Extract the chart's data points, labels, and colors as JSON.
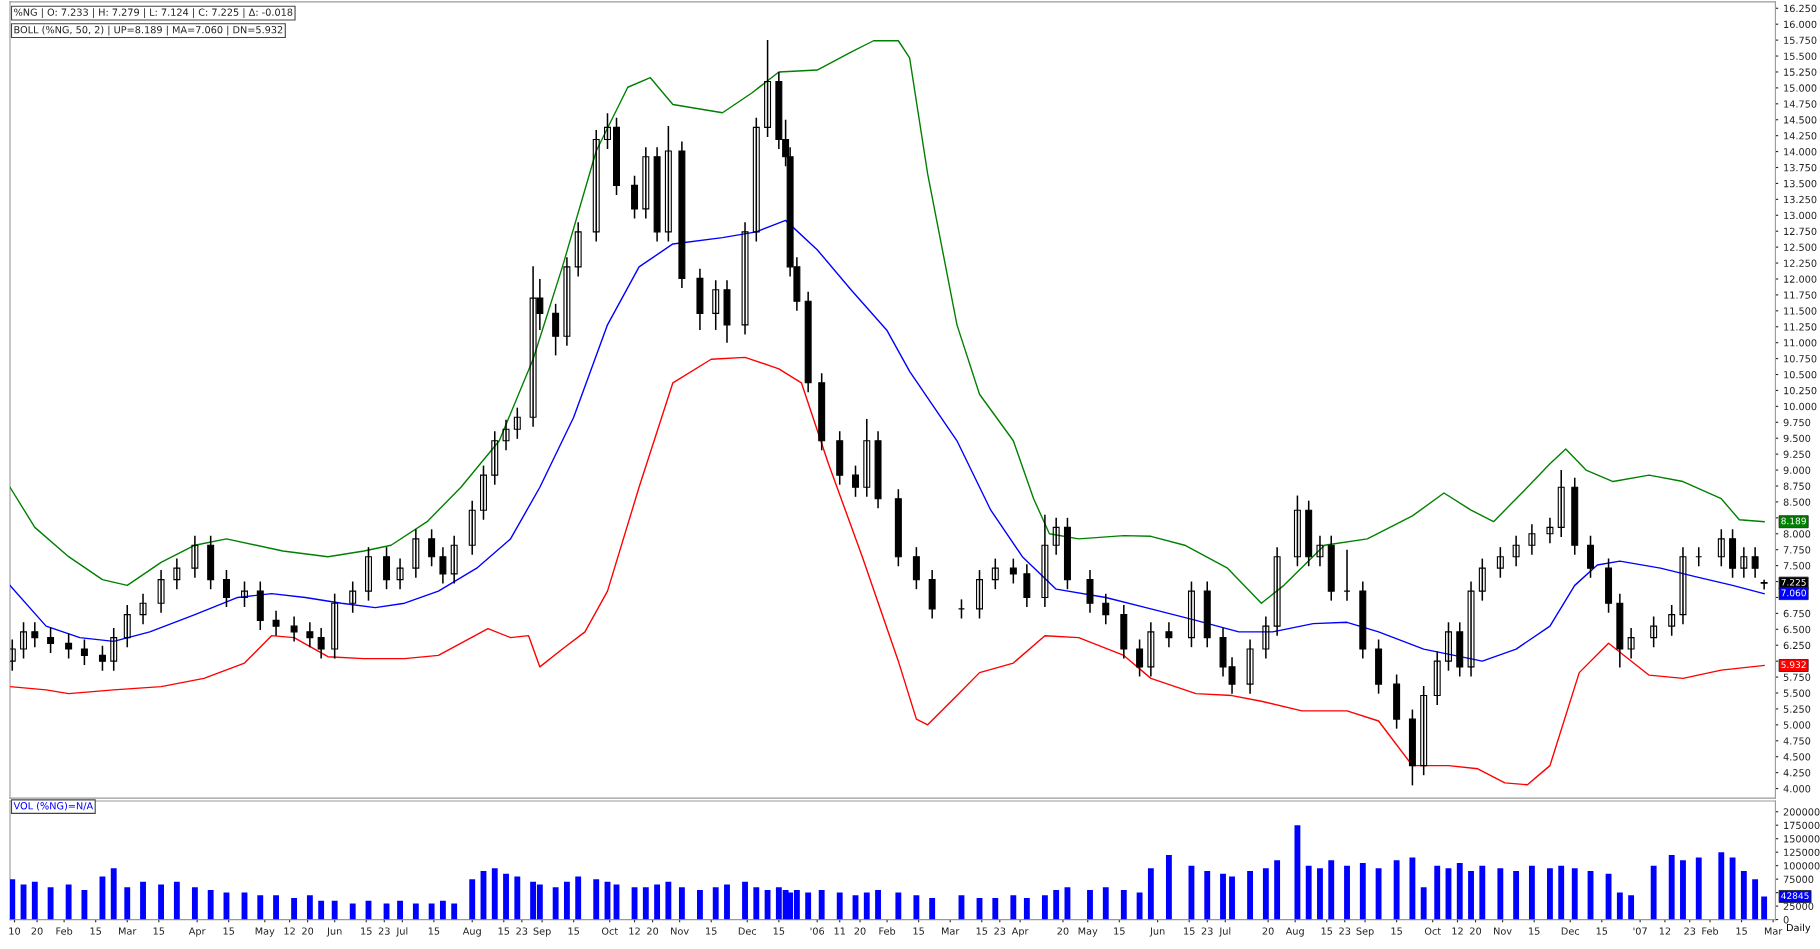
{
  "chart_data": [
    {
      "type": "candlestick",
      "color": "#000000",
      "annotations": [
        "%NG | O: 7.233 | H: 7.279 | L: 7.124 | C: 7.225 | Δ: -0.018",
        "BOLL (%NG, 50, 2) | UP=8.189 | MA=7.060 | DN=5.932",
        {
          "text": "8.189",
          "x": "2007-02-25",
          "y": 8.189
        },
        {
          "text": "7.225",
          "x": "2007-02-25",
          "y": 7.225
        },
        {
          "text": "7.060",
          "x": "2007-02-25",
          "y": 7.06
        },
        {
          "text": "5.932",
          "x": "2007-02-25",
          "y": 5.932
        }
      ],
      "x": [
        "2005-01-09",
        "2005-01-14",
        "2005-01-19",
        "2005-01-26",
        "2005-02-03",
        "2005-02-10",
        "2005-02-18",
        "2005-02-23",
        "2005-03-01",
        "2005-03-08",
        "2005-03-16",
        "2005-03-23",
        "2005-03-31",
        "2005-04-07",
        "2005-04-14",
        "2005-04-22",
        "2005-04-29",
        "2005-05-06",
        "2005-05-14",
        "2005-05-21",
        "2005-05-26",
        "2005-06-01",
        "2005-06-09",
        "2005-06-16",
        "2005-06-24",
        "2005-06-30",
        "2005-07-07",
        "2005-07-14",
        "2005-07-19",
        "2005-07-24",
        "2005-08-01",
        "2005-08-06",
        "2005-08-11",
        "2005-08-16",
        "2005-08-21",
        "2005-08-28",
        "2005-08-31",
        "2005-09-07",
        "2005-09-12",
        "2005-09-17",
        "2005-09-25",
        "2005-09-30",
        "2005-10-04",
        "2005-10-12",
        "2005-10-17",
        "2005-10-22",
        "2005-10-27",
        "2005-11-02",
        "2005-11-10",
        "2005-11-17",
        "2005-11-22",
        "2005-11-30",
        "2005-12-05",
        "2005-12-10",
        "2005-12-15",
        "2005-12-18",
        "2005-12-20",
        "2005-12-23",
        "2005-12-28",
        "2006-01-03",
        "2006-01-11",
        "2006-01-18",
        "2006-01-23",
        "2006-01-28",
        "2006-02-06",
        "2006-02-14",
        "2006-02-21",
        "2006-03-06",
        "2006-03-14",
        "2006-03-21",
        "2006-03-29",
        "2006-04-04",
        "2006-04-12",
        "2006-04-17",
        "2006-04-22",
        "2006-05-02",
        "2006-05-09",
        "2006-05-17",
        "2006-05-24",
        "2006-05-29",
        "2006-06-06",
        "2006-06-16",
        "2006-06-23",
        "2006-06-30",
        "2006-07-04",
        "2006-07-12",
        "2006-07-19",
        "2006-07-24",
        "2006-08-02",
        "2006-08-07",
        "2006-08-12",
        "2006-08-17",
        "2006-08-24",
        "2006-08-31",
        "2006-09-07",
        "2006-09-15",
        "2006-09-22",
        "2006-09-27",
        "2006-10-03",
        "2006-10-08",
        "2006-10-13",
        "2006-10-18",
        "2006-10-23",
        "2006-10-31",
        "2006-11-07",
        "2006-11-14",
        "2006-11-22",
        "2006-11-27",
        "2006-12-03",
        "2006-12-10",
        "2006-12-18",
        "2006-12-23",
        "2006-12-28",
        "2007-01-07",
        "2007-01-15",
        "2007-01-20",
        "2007-01-27",
        "2007-02-06",
        "2007-02-11",
        "2007-02-16",
        "2007-02-21",
        "2007-02-25"
      ],
      "ohlc": [
        [
          6.0,
          6.34,
          5.85,
          6.19
        ],
        [
          6.19,
          6.61,
          6.04,
          6.46
        ],
        [
          6.46,
          6.61,
          6.22,
          6.37
        ],
        [
          6.37,
          6.52,
          6.13,
          6.28
        ],
        [
          6.28,
          6.43,
          6.04,
          6.19
        ],
        [
          6.19,
          6.34,
          5.94,
          6.09
        ],
        [
          6.09,
          6.24,
          5.85,
          6.0
        ],
        [
          6.0,
          6.52,
          5.85,
          6.37
        ],
        [
          6.37,
          6.88,
          6.22,
          6.73
        ],
        [
          6.73,
          7.06,
          6.58,
          6.91
        ],
        [
          6.91,
          7.43,
          6.76,
          7.28
        ],
        [
          7.28,
          7.61,
          7.13,
          7.46
        ],
        [
          7.46,
          7.97,
          7.31,
          7.82
        ],
        [
          7.82,
          7.97,
          7.13,
          7.28
        ],
        [
          7.28,
          7.43,
          6.85,
          7.0
        ],
        [
          7.0,
          7.25,
          6.85,
          7.1
        ],
        [
          7.1,
          7.25,
          6.49,
          6.64
        ],
        [
          6.64,
          6.79,
          6.4,
          6.55
        ],
        [
          6.55,
          6.7,
          6.31,
          6.46
        ],
        [
          6.46,
          6.61,
          6.22,
          6.37
        ],
        [
          6.37,
          6.52,
          6.04,
          6.19
        ],
        [
          6.19,
          7.06,
          6.04,
          6.91
        ],
        [
          6.91,
          7.25,
          6.76,
          7.1
        ],
        [
          7.1,
          7.79,
          6.95,
          7.64
        ],
        [
          7.64,
          7.79,
          7.13,
          7.28
        ],
        [
          7.28,
          7.61,
          7.13,
          7.46
        ],
        [
          7.46,
          8.07,
          7.31,
          7.92
        ],
        [
          7.92,
          8.07,
          7.49,
          7.64
        ],
        [
          7.64,
          7.79,
          7.22,
          7.37
        ],
        [
          7.37,
          7.97,
          7.22,
          7.82
        ],
        [
          7.82,
          8.52,
          7.67,
          8.37
        ],
        [
          8.37,
          9.07,
          8.22,
          8.92
        ],
        [
          8.92,
          9.61,
          8.77,
          9.46
        ],
        [
          9.46,
          9.79,
          9.31,
          9.64
        ],
        [
          9.64,
          9.98,
          9.49,
          9.83
        ],
        [
          9.83,
          12.2,
          9.68,
          11.7
        ],
        [
          11.7,
          12.0,
          11.2,
          11.46
        ],
        [
          11.46,
          11.61,
          10.8,
          11.1
        ],
        [
          11.1,
          12.34,
          10.95,
          12.19
        ],
        [
          12.19,
          12.89,
          12.04,
          12.74
        ],
        [
          12.74,
          14.34,
          12.59,
          14.19
        ],
        [
          14.19,
          14.6,
          14.04,
          14.38
        ],
        [
          14.38,
          14.53,
          13.32,
          13.47
        ],
        [
          13.47,
          13.62,
          12.95,
          13.1
        ],
        [
          13.1,
          14.07,
          12.95,
          13.92
        ],
        [
          13.92,
          14.07,
          12.59,
          12.74
        ],
        [
          12.74,
          14.4,
          12.59,
          14.01
        ],
        [
          14.01,
          14.16,
          11.86,
          12.01
        ],
        [
          12.01,
          12.16,
          11.2,
          11.46
        ],
        [
          11.46,
          11.98,
          11.2,
          11.83
        ],
        [
          11.83,
          11.98,
          11.0,
          11.28
        ],
        [
          11.28,
          12.89,
          11.13,
          12.74
        ],
        [
          12.74,
          14.53,
          12.59,
          14.38
        ],
        [
          14.38,
          15.75,
          14.23,
          15.1
        ],
        [
          15.1,
          15.25,
          14.04,
          14.19
        ],
        [
          14.19,
          14.5,
          13.77,
          13.92
        ],
        [
          13.92,
          14.07,
          12.04,
          12.19
        ],
        [
          12.19,
          12.34,
          11.5,
          11.65
        ],
        [
          11.65,
          11.8,
          10.22,
          10.37
        ],
        [
          10.37,
          10.52,
          9.31,
          9.46
        ],
        [
          9.46,
          9.61,
          8.77,
          8.92
        ],
        [
          8.92,
          9.07,
          8.58,
          8.73
        ],
        [
          8.73,
          9.8,
          8.58,
          9.46
        ],
        [
          9.46,
          9.61,
          8.4,
          8.55
        ],
        [
          8.55,
          8.7,
          7.49,
          7.64
        ],
        [
          7.64,
          7.79,
          7.13,
          7.28
        ],
        [
          7.28,
          7.43,
          6.67,
          6.82
        ],
        [
          6.82,
          6.97,
          6.67,
          6.82
        ],
        [
          6.82,
          7.43,
          6.67,
          7.28
        ],
        [
          7.28,
          7.61,
          7.13,
          7.46
        ],
        [
          7.46,
          7.61,
          7.22,
          7.37
        ],
        [
          7.37,
          7.52,
          6.85,
          7.0
        ],
        [
          7.0,
          8.3,
          6.85,
          7.82
        ],
        [
          7.82,
          8.25,
          7.67,
          8.1
        ],
        [
          8.1,
          8.25,
          7.13,
          7.28
        ],
        [
          7.28,
          7.43,
          6.76,
          6.91
        ],
        [
          6.91,
          7.06,
          6.58,
          6.73
        ],
        [
          6.73,
          6.88,
          6.04,
          6.19
        ],
        [
          6.19,
          6.34,
          5.76,
          5.91
        ],
        [
          5.91,
          6.61,
          5.76,
          6.46
        ],
        [
          6.46,
          6.61,
          6.22,
          6.37
        ],
        [
          6.37,
          7.25,
          6.22,
          7.1
        ],
        [
          7.1,
          7.25,
          6.22,
          6.37
        ],
        [
          6.37,
          6.52,
          5.76,
          5.91
        ],
        [
          5.91,
          6.06,
          5.49,
          5.64
        ],
        [
          5.64,
          6.34,
          5.49,
          6.19
        ],
        [
          6.19,
          6.7,
          6.04,
          6.55
        ],
        [
          6.55,
          7.79,
          6.4,
          7.64
        ],
        [
          7.64,
          8.6,
          7.49,
          8.37
        ],
        [
          8.37,
          8.52,
          7.49,
          7.64
        ],
        [
          7.64,
          7.97,
          7.49,
          7.82
        ],
        [
          7.82,
          7.97,
          6.95,
          7.1
        ],
        [
          7.1,
          7.75,
          6.95,
          7.1
        ],
        [
          7.1,
          7.25,
          6.04,
          6.19
        ],
        [
          6.19,
          6.34,
          5.49,
          5.64
        ],
        [
          5.64,
          5.79,
          4.94,
          5.09
        ],
        [
          5.09,
          5.24,
          4.05,
          4.36
        ],
        [
          4.36,
          5.61,
          4.21,
          5.46
        ],
        [
          5.46,
          6.15,
          5.31,
          6.0
        ],
        [
          6.0,
          6.61,
          5.85,
          6.46
        ],
        [
          6.46,
          6.61,
          5.76,
          5.91
        ],
        [
          5.91,
          7.25,
          5.76,
          7.1
        ],
        [
          7.1,
          7.61,
          6.95,
          7.46
        ],
        [
          7.46,
          7.79,
          7.31,
          7.64
        ],
        [
          7.64,
          7.97,
          7.49,
          7.82
        ],
        [
          7.82,
          8.15,
          7.67,
          8.0
        ],
        [
          8.0,
          8.25,
          7.85,
          8.1
        ],
        [
          8.1,
          9.0,
          7.95,
          8.73
        ],
        [
          8.73,
          8.88,
          7.67,
          7.82
        ],
        [
          7.82,
          7.97,
          7.31,
          7.46
        ],
        [
          7.46,
          7.61,
          6.76,
          6.91
        ],
        [
          6.91,
          7.06,
          5.9,
          6.19
        ],
        [
          6.19,
          6.52,
          6.04,
          6.37
        ],
        [
          6.37,
          6.7,
          6.22,
          6.55
        ],
        [
          6.55,
          6.88,
          6.4,
          6.73
        ],
        [
          6.73,
          7.79,
          6.58,
          7.64
        ],
        [
          7.64,
          7.79,
          7.49,
          7.64
        ],
        [
          7.64,
          8.07,
          7.49,
          7.92
        ],
        [
          7.92,
          8.07,
          7.31,
          7.46
        ],
        [
          7.46,
          7.79,
          7.31,
          7.64
        ],
        [
          7.64,
          7.79,
          7.31,
          7.46
        ],
        [
          7.233,
          7.279,
          7.124,
          7.225
        ]
      ],
      "series": [
        {
          "type": "line",
          "color": "#008000",
          "x": [
            "2005-01-08",
            "2005-01-19",
            "2005-02-03",
            "2005-02-18",
            "2005-03-01",
            "2005-03-16",
            "2005-03-31",
            "2005-04-14",
            "2005-05-09",
            "2005-05-29",
            "2005-06-14",
            "2005-06-26",
            "2005-07-12",
            "2005-07-27",
            "2005-08-13",
            "2005-08-28",
            "2005-09-10",
            "2005-09-25",
            "2005-10-09",
            "2005-10-19",
            "2005-10-29",
            "2005-11-20",
            "2005-12-03",
            "2005-12-15",
            "2006-01-01",
            "2006-01-16",
            "2006-01-26",
            "2006-02-06",
            "2006-02-11",
            "2006-02-19",
            "2006-03-04",
            "2006-03-14",
            "2006-03-29",
            "2006-04-07",
            "2006-04-14",
            "2006-04-27",
            "2006-05-17",
            "2006-05-29",
            "2006-06-13",
            "2006-07-02",
            "2006-07-17",
            "2006-07-27",
            "2006-08-14",
            "2006-09-02",
            "2006-09-22",
            "2006-10-06",
            "2006-10-18",
            "2006-10-28",
            "2006-11-12",
            "2006-11-22",
            "2006-11-29",
            "2006-12-08",
            "2006-12-20",
            "2007-01-05",
            "2007-01-20",
            "2007-02-06",
            "2007-02-14",
            "2007-02-25"
          ],
          "values": [
            8.73,
            8.1,
            7.64,
            7.28,
            7.19,
            7.55,
            7.82,
            7.92,
            7.73,
            7.64,
            7.73,
            7.82,
            8.19,
            8.73,
            9.46,
            10.74,
            12.19,
            14.01,
            15.01,
            15.16,
            14.74,
            14.61,
            14.92,
            15.25,
            15.28,
            15.56,
            15.74,
            15.74,
            15.47,
            13.65,
            11.28,
            10.19,
            9.46,
            8.55,
            8.0,
            7.92,
            7.97,
            7.96,
            7.82,
            7.46,
            6.91,
            7.19,
            7.82,
            7.92,
            8.28,
            8.64,
            8.37,
            8.19,
            8.73,
            9.1,
            9.33,
            9.0,
            8.82,
            8.92,
            8.82,
            8.55,
            8.22,
            8.189
          ]
        },
        {
          "type": "line",
          "color": "#0000ff",
          "x": [
            "2005-01-08",
            "2005-01-24",
            "2005-02-08",
            "2005-02-23",
            "2005-03-11",
            "2005-03-31",
            "2005-04-19",
            "2005-05-04",
            "2005-05-19",
            "2005-06-04",
            "2005-06-19",
            "2005-07-02",
            "2005-07-17",
            "2005-08-03",
            "2005-08-18",
            "2005-08-31",
            "2005-09-15",
            "2005-09-30",
            "2005-10-14",
            "2005-10-29",
            "2005-11-20",
            "2005-12-05",
            "2005-12-18",
            "2006-01-01",
            "2006-01-16",
            "2006-02-01",
            "2006-02-11",
            "2006-03-04",
            "2006-03-19",
            "2006-04-02",
            "2006-04-17",
            "2006-05-09",
            "2006-05-29",
            "2006-06-18",
            "2006-07-07",
            "2006-07-22",
            "2006-08-09",
            "2006-08-24",
            "2006-09-07",
            "2006-09-27",
            "2006-10-23",
            "2006-11-07",
            "2006-11-22",
            "2006-12-03",
            "2006-12-13",
            "2006-12-23",
            "2007-01-10",
            "2007-01-25",
            "2007-02-11",
            "2007-02-25"
          ],
          "values": [
            7.19,
            6.55,
            6.37,
            6.31,
            6.46,
            6.73,
            7.0,
            7.06,
            7.0,
            6.91,
            6.84,
            6.91,
            7.1,
            7.46,
            7.92,
            8.73,
            9.83,
            11.28,
            12.19,
            12.55,
            12.65,
            12.74,
            12.92,
            12.46,
            11.83,
            11.19,
            10.55,
            9.46,
            8.37,
            7.64,
            7.13,
            7.0,
            6.82,
            6.64,
            6.46,
            6.46,
            6.59,
            6.61,
            6.46,
            6.19,
            6.0,
            6.19,
            6.55,
            7.19,
            7.51,
            7.57,
            7.46,
            7.33,
            7.19,
            7.06
          ]
        },
        {
          "type": "line",
          "color": "#ff0000",
          "x": [
            "2005-01-08",
            "2005-01-24",
            "2005-02-03",
            "2005-02-23",
            "2005-03-16",
            "2005-04-04",
            "2005-04-22",
            "2005-05-04",
            "2005-05-14",
            "2005-05-29",
            "2005-06-14",
            "2005-07-02",
            "2005-07-17",
            "2005-08-08",
            "2005-08-18",
            "2005-08-26",
            "2005-08-31",
            "2005-09-10",
            "2005-09-20",
            "2005-09-30",
            "2005-10-14",
            "2005-10-29",
            "2005-11-15",
            "2005-11-30",
            "2005-12-15",
            "2005-12-25",
            "2006-01-06",
            "2006-01-21",
            "2006-02-06",
            "2006-02-14",
            "2006-02-19",
            "2006-03-04",
            "2006-03-14",
            "2006-03-29",
            "2006-04-12",
            "2006-04-27",
            "2006-05-17",
            "2006-05-29",
            "2006-06-18",
            "2006-07-04",
            "2006-07-17",
            "2006-08-04",
            "2006-08-24",
            "2006-09-07",
            "2006-09-22",
            "2006-10-08",
            "2006-10-21",
            "2006-11-02",
            "2006-11-12",
            "2006-11-22",
            "2006-12-05",
            "2006-12-18",
            "2007-01-05",
            "2007-01-20",
            "2007-02-06",
            "2007-02-25"
          ],
          "values": [
            5.6,
            5.55,
            5.49,
            5.55,
            5.6,
            5.73,
            5.97,
            6.4,
            6.37,
            6.07,
            6.04,
            6.04,
            6.09,
            6.51,
            6.37,
            6.4,
            5.91,
            6.19,
            6.46,
            7.1,
            8.73,
            10.37,
            10.74,
            10.77,
            10.59,
            10.37,
            9.1,
            7.64,
            6.0,
            5.09,
            5.0,
            5.46,
            5.82,
            5.97,
            6.4,
            6.37,
            6.09,
            5.73,
            5.49,
            5.46,
            5.37,
            5.22,
            5.22,
            5.06,
            4.36,
            4.36,
            4.31,
            4.09,
            4.06,
            4.36,
            5.82,
            6.28,
            5.78,
            5.73,
            5.86,
            5.932
          ]
        }
      ],
      "xlim": [
        "2005-01-08",
        "2007-03-02"
      ],
      "ylim": [
        3.85,
        16.35
      ],
      "tick_labels": "y",
      "yticks": [
        {
          "value": 4.0,
          "label": "4.000"
        },
        {
          "value": 4.25,
          "label": "4.250"
        },
        {
          "value": 4.5,
          "label": "4.500"
        },
        {
          "value": 4.75,
          "label": "4.750"
        },
        {
          "value": 5.0,
          "label": "5.000"
        },
        {
          "value": 5.25,
          "label": "5.250"
        },
        {
          "value": 5.5,
          "label": "5.500"
        },
        {
          "value": 5.75,
          "label": "5.750"
        },
        {
          "value": 6.0,
          "label": null
        },
        {
          "value": 6.25,
          "label": "6.250"
        },
        {
          "value": 6.5,
          "label": "6.500"
        },
        {
          "value": 6.75,
          "label": "6.750"
        },
        {
          "value": 7.0,
          "label": null
        },
        {
          "value": 7.25,
          "label": null
        },
        {
          "value": 7.5,
          "label": "7.500"
        },
        {
          "value": 7.75,
          "label": "7.750"
        },
        {
          "value": 8.0,
          "label": "8.000"
        },
        {
          "value": 8.25,
          "label": null
        },
        {
          "value": 8.5,
          "label": "8.500"
        },
        {
          "value": 8.75,
          "label": "8.750"
        },
        {
          "value": 9.0,
          "label": "9.000"
        },
        {
          "value": 9.25,
          "label": "9.250"
        },
        {
          "value": 9.5,
          "label": "9.500"
        },
        {
          "value": 9.75,
          "label": "9.750"
        },
        {
          "value": 10.0,
          "label": "10.000"
        },
        {
          "value": 10.25,
          "label": "10.250"
        },
        {
          "value": 10.5,
          "label": "10.500"
        },
        {
          "value": 10.75,
          "label": "10.750"
        },
        {
          "value": 11.0,
          "label": "11.000"
        },
        {
          "value": 11.25,
          "label": "11.250"
        },
        {
          "value": 11.5,
          "label": "11.500"
        },
        {
          "value": 11.75,
          "label": "11.750"
        },
        {
          "value": 12.0,
          "label": "12.000"
        },
        {
          "value": 12.25,
          "label": "12.250"
        },
        {
          "value": 12.5,
          "label": "12.500"
        },
        {
          "value": 12.75,
          "label": "12.750"
        },
        {
          "value": 13.0,
          "label": "13.000"
        },
        {
          "value": 13.25,
          "label": "13.250"
        },
        {
          "value": 13.5,
          "label": "13.500"
        },
        {
          "value": 13.75,
          "label": "13.750"
        },
        {
          "value": 14.0,
          "label": "14.000"
        },
        {
          "value": 14.25,
          "label": "14.250"
        },
        {
          "value": 14.5,
          "label": "14.500"
        },
        {
          "value": 14.75,
          "label": "14.750"
        },
        {
          "value": 15.0,
          "label": "15.000"
        },
        {
          "value": 15.25,
          "label": "15.250"
        },
        {
          "value": 15.5,
          "label": "15.500"
        },
        {
          "value": 15.75,
          "label": "15.750"
        },
        {
          "value": 16.0,
          "label": "16.000"
        },
        {
          "value": 16.25,
          "label": "16.250"
        }
      ]
    },
    {
      "type": "bar",
      "color": "#0000ff",
      "xlabel": "Daily",
      "annotations": [
        "VOL (%NG)=N/A",
        {
          "text": "42845",
          "x": "2007-02-25",
          "y": 42845
        }
      ],
      "x": [
        "2005-01-09",
        "2005-01-14",
        "2005-01-19",
        "2005-01-26",
        "2005-02-03",
        "2005-02-10",
        "2005-02-18",
        "2005-02-23",
        "2005-03-01",
        "2005-03-08",
        "2005-03-16",
        "2005-03-23",
        "2005-03-31",
        "2005-04-07",
        "2005-04-14",
        "2005-04-22",
        "2005-04-29",
        "2005-05-06",
        "2005-05-14",
        "2005-05-21",
        "2005-05-26",
        "2005-06-01",
        "2005-06-09",
        "2005-06-16",
        "2005-06-24",
        "2005-06-30",
        "2005-07-07",
        "2005-07-14",
        "2005-07-19",
        "2005-07-24",
        "2005-08-01",
        "2005-08-06",
        "2005-08-11",
        "2005-08-16",
        "2005-08-21",
        "2005-08-28",
        "2005-08-31",
        "2005-09-07",
        "2005-09-12",
        "2005-09-17",
        "2005-09-25",
        "2005-09-30",
        "2005-10-04",
        "2005-10-12",
        "2005-10-17",
        "2005-10-22",
        "2005-10-27",
        "2005-11-02",
        "2005-11-10",
        "2005-11-17",
        "2005-11-22",
        "2005-11-30",
        "2005-12-05",
        "2005-12-10",
        "2005-12-15",
        "2005-12-18",
        "2005-12-20",
        "2005-12-23",
        "2005-12-28",
        "2006-01-03",
        "2006-01-11",
        "2006-01-18",
        "2006-01-23",
        "2006-01-28",
        "2006-02-06",
        "2006-02-14",
        "2006-02-21",
        "2006-03-06",
        "2006-03-14",
        "2006-03-21",
        "2006-03-29",
        "2006-04-04",
        "2006-04-12",
        "2006-04-17",
        "2006-04-22",
        "2006-05-02",
        "2006-05-09",
        "2006-05-17",
        "2006-05-24",
        "2006-05-29",
        "2006-06-06",
        "2006-06-16",
        "2006-06-23",
        "2006-06-30",
        "2006-07-04",
        "2006-07-12",
        "2006-07-19",
        "2006-07-24",
        "2006-08-02",
        "2006-08-07",
        "2006-08-12",
        "2006-08-17",
        "2006-08-24",
        "2006-08-31",
        "2006-09-07",
        "2006-09-15",
        "2006-09-22",
        "2006-09-27",
        "2006-10-03",
        "2006-10-08",
        "2006-10-13",
        "2006-10-18",
        "2006-10-23",
        "2006-10-31",
        "2006-11-07",
        "2006-11-14",
        "2006-11-22",
        "2006-11-27",
        "2006-12-03",
        "2006-12-10",
        "2006-12-18",
        "2006-12-23",
        "2006-12-28",
        "2007-01-07",
        "2007-01-15",
        "2007-01-20",
        "2007-01-27",
        "2007-02-06",
        "2007-02-11",
        "2007-02-16",
        "2007-02-21",
        "2007-02-25"
      ],
      "values": [
        75000,
        65000,
        70000,
        60000,
        65000,
        55000,
        80000,
        95000,
        60000,
        70000,
        65000,
        70000,
        60000,
        55000,
        50000,
        50000,
        45000,
        45000,
        40000,
        45000,
        35000,
        35000,
        30000,
        35000,
        30000,
        35000,
        30000,
        30000,
        35000,
        30000,
        75000,
        90000,
        95000,
        85000,
        80000,
        70000,
        65000,
        60000,
        70000,
        80000,
        75000,
        70000,
        65000,
        60000,
        60000,
        65000,
        70000,
        60000,
        55000,
        60000,
        65000,
        70000,
        60000,
        55000,
        60000,
        55000,
        50000,
        55000,
        50000,
        55000,
        50000,
        45000,
        50000,
        55000,
        50000,
        45000,
        40000,
        45000,
        40000,
        40000,
        45000,
        40000,
        45000,
        55000,
        60000,
        55000,
        60000,
        55000,
        50000,
        95000,
        120000,
        100000,
        90000,
        85000,
        80000,
        90000,
        95000,
        110000,
        175000,
        100000,
        95000,
        110000,
        100000,
        105000,
        95000,
        110000,
        115000,
        60000,
        100000,
        95000,
        105000,
        90000,
        100000,
        95000,
        90000,
        100000,
        95000,
        100000,
        95000,
        90000,
        85000,
        50000,
        45000,
        100000,
        120000,
        110000,
        115000,
        125000,
        115000,
        90000,
        75000,
        42845
      ],
      "xlim": [
        "2005-01-08",
        "2007-03-02"
      ],
      "ylim": [
        0,
        220000
      ],
      "yticks": [
        0,
        {
          "value": 25000,
          "label": "25000"
        },
        {
          "value": 50000,
          "label": null
        },
        75000,
        100000,
        125000,
        150000,
        175000,
        200000
      ],
      "xticks": [
        {
          "value": "2005-01-10",
          "label": "10"
        },
        {
          "value": "2005-01-20",
          "label": "20"
        },
        {
          "value": "2005-02-01",
          "label": "Feb"
        },
        {
          "value": "2005-02-15",
          "label": "15"
        },
        {
          "value": "2005-03-01",
          "label": "Mar"
        },
        {
          "value": "2005-03-15",
          "label": "15"
        },
        {
          "value": "2005-04-01",
          "label": "Apr"
        },
        {
          "value": "2005-04-15",
          "label": "15"
        },
        {
          "value": "2005-05-01",
          "label": "May"
        },
        {
          "value": "2005-05-12",
          "label": "12"
        },
        {
          "value": "2005-05-20",
          "label": "20"
        },
        {
          "value": "2005-06-01",
          "label": "Jun"
        },
        {
          "value": "2005-06-15",
          "label": "15"
        },
        {
          "value": "2005-06-23",
          "label": "23"
        },
        {
          "value": "2005-07-01",
          "label": "Jul"
        },
        {
          "value": "2005-07-15",
          "label": "15"
        },
        {
          "value": "2005-08-01",
          "label": "Aug"
        },
        {
          "value": "2005-08-15",
          "label": "15"
        },
        {
          "value": "2005-08-23",
          "label": "23"
        },
        {
          "value": "2005-09-01",
          "label": "Sep"
        },
        {
          "value": "2005-09-15",
          "label": "15"
        },
        {
          "value": "2005-10-01",
          "label": "Oct"
        },
        {
          "value": "2005-10-12",
          "label": "12"
        },
        {
          "value": "2005-10-20",
          "label": "20"
        },
        {
          "value": "2005-11-01",
          "label": "Nov"
        },
        {
          "value": "2005-11-15",
          "label": "15"
        },
        {
          "value": "2005-12-01",
          "label": "Dec"
        },
        {
          "value": "2005-12-15",
          "label": "15"
        },
        {
          "value": "2006-01-01",
          "label": "'06"
        },
        {
          "value": "2006-01-11",
          "label": "11"
        },
        {
          "value": "2006-01-20",
          "label": "20"
        },
        {
          "value": "2006-02-01",
          "label": "Feb"
        },
        {
          "value": "2006-02-15",
          "label": "15"
        },
        {
          "value": "2006-03-01",
          "label": "Mar"
        },
        {
          "value": "2006-03-15",
          "label": "15"
        },
        {
          "value": "2006-03-23",
          "label": "23"
        },
        {
          "value": "2006-04-01",
          "label": "Apr"
        },
        {
          "value": "2006-04-20",
          "label": "20"
        },
        {
          "value": "2006-05-01",
          "label": "May"
        },
        {
          "value": "2006-05-15",
          "label": "15"
        },
        {
          "value": "2006-06-01",
          "label": "Jun"
        },
        {
          "value": "2006-06-15",
          "label": "15"
        },
        {
          "value": "2006-06-23",
          "label": "23"
        },
        {
          "value": "2006-07-01",
          "label": "Jul"
        },
        {
          "value": "2006-07-20",
          "label": "20"
        },
        {
          "value": "2006-08-01",
          "label": "Aug"
        },
        {
          "value": "2006-08-15",
          "label": "15"
        },
        {
          "value": "2006-08-23",
          "label": "23"
        },
        {
          "value": "2006-09-01",
          "label": "Sep"
        },
        {
          "value": "2006-09-15",
          "label": "15"
        },
        {
          "value": "2006-10-01",
          "label": "Oct"
        },
        {
          "value": "2006-10-12",
          "label": "12"
        },
        {
          "value": "2006-10-20",
          "label": "20"
        },
        {
          "value": "2006-11-01",
          "label": "Nov"
        },
        {
          "value": "2006-11-15",
          "label": "15"
        },
        {
          "value": "2006-12-01",
          "label": "Dec"
        },
        {
          "value": "2006-12-15",
          "label": "15"
        },
        {
          "value": "2007-01-01",
          "label": "'07"
        },
        {
          "value": "2007-01-12",
          "label": "12"
        },
        {
          "value": "2007-01-23",
          "label": "23"
        },
        {
          "value": "2007-02-01",
          "label": "Feb"
        },
        {
          "value": "2007-02-15",
          "label": "15"
        },
        {
          "value": "2007-03-01",
          "label": "Mar"
        }
      ]
    }
  ]
}
